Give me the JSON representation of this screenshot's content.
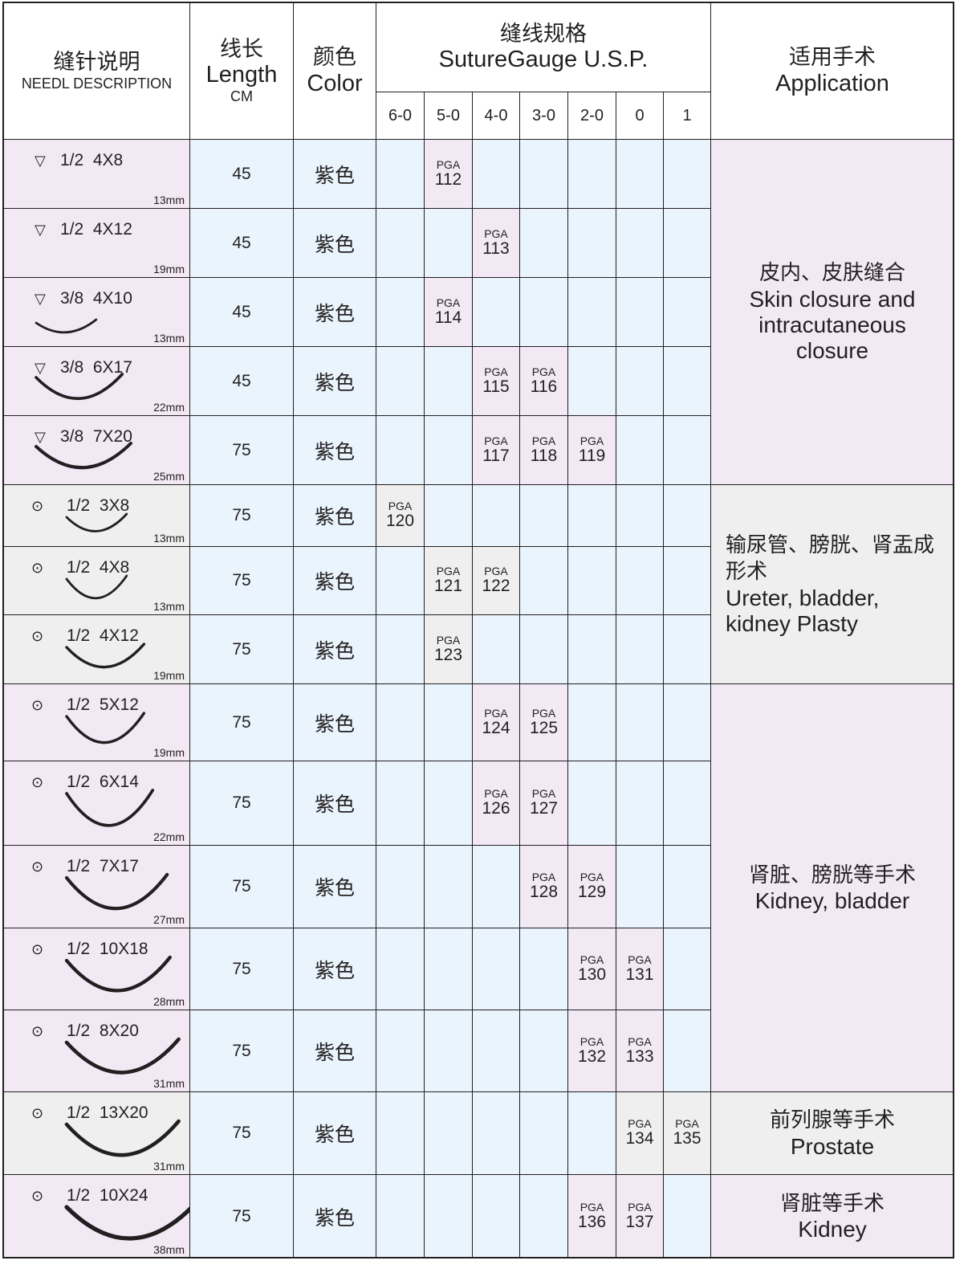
{
  "header": {
    "desc_cn": "缝针说明",
    "desc_en": "NEEDL DESCRIPTION",
    "length_cn": "线长",
    "length_en": "Length",
    "length_unit": "CM",
    "color_cn": "颜色",
    "color_en": "Color",
    "gauge_cn": "缝线规格",
    "gauge_en": "SutureGauge U.S.P.",
    "gauges": [
      "6-0",
      "5-0",
      "4-0",
      "3-0",
      "2-0",
      "0",
      "1"
    ],
    "app_cn": "适用手术",
    "app_en": "Application"
  },
  "colors": {
    "purple": "#f2e9f5",
    "blue": "#e9f4fd",
    "gray": "#efefef",
    "line": "#231f20"
  },
  "rows": [
    {
      "icon": "triangle",
      "curve": "1/2",
      "size": "4X8",
      "mm": "13mm",
      "length": "45",
      "color": "紫色",
      "tint": "purple",
      "codes": {
        "5-0": "112"
      }
    },
    {
      "icon": "triangle",
      "curve": "1/2",
      "size": "4X12",
      "mm": "19mm",
      "length": "45",
      "color": "紫色",
      "tint": "purple",
      "codes": {
        "4-0": "113"
      }
    },
    {
      "icon": "triangle",
      "curve": "3/8",
      "size": "4X10",
      "mm": "13mm",
      "length": "45",
      "color": "紫色",
      "tint": "purple",
      "codes": {
        "5-0": "114"
      }
    },
    {
      "icon": "triangle",
      "curve": "3/8",
      "size": "6X17",
      "mm": "22mm",
      "length": "45",
      "color": "紫色",
      "tint": "purple",
      "codes": {
        "4-0": "115",
        "3-0": "116"
      }
    },
    {
      "icon": "triangle",
      "curve": "3/8",
      "size": "7X20",
      "mm": "25mm",
      "length": "75",
      "color": "紫色",
      "tint": "purple",
      "codes": {
        "4-0": "117",
        "3-0": "118",
        "2-0": "119"
      }
    },
    {
      "icon": "circle-dot",
      "curve": "1/2",
      "size": "3X8",
      "mm": "13mm",
      "length": "75",
      "color": "紫色",
      "tint": "gray",
      "codes": {
        "6-0": "120"
      }
    },
    {
      "icon": "circle-dot",
      "curve": "1/2",
      "size": "4X8",
      "mm": "13mm",
      "length": "75",
      "color": "紫色",
      "tint": "gray",
      "codes": {
        "5-0": "121",
        "4-0": "122"
      }
    },
    {
      "icon": "circle-dot",
      "curve": "1/2",
      "size": "4X12",
      "mm": "19mm",
      "length": "75",
      "color": "紫色",
      "tint": "gray",
      "codes": {
        "5-0": "123"
      }
    },
    {
      "icon": "circle-dot",
      "curve": "1/2",
      "size": "5X12",
      "mm": "19mm",
      "length": "75",
      "color": "紫色",
      "tint": "purple",
      "codes": {
        "4-0": "124",
        "3-0": "125"
      }
    },
    {
      "icon": "circle-dot",
      "curve": "1/2",
      "size": "6X14",
      "mm": "22mm",
      "length": "75",
      "color": "紫色",
      "tint": "purple",
      "codes": {
        "4-0": "126",
        "3-0": "127"
      }
    },
    {
      "icon": "circle-dot",
      "curve": "1/2",
      "size": "7X17",
      "mm": "27mm",
      "length": "75",
      "color": "紫色",
      "tint": "purple",
      "codes": {
        "3-0": "128",
        "2-0": "129"
      }
    },
    {
      "icon": "circle-dot",
      "curve": "1/2",
      "size": "10X18",
      "mm": "28mm",
      "length": "75",
      "color": "紫色",
      "tint": "purple",
      "codes": {
        "2-0": "130",
        "0": "131"
      }
    },
    {
      "icon": "circle-dot",
      "curve": "1/2",
      "size": "8X20",
      "mm": "31mm",
      "length": "75",
      "color": "紫色",
      "tint": "purple",
      "codes": {
        "2-0": "132",
        "0": "133"
      }
    },
    {
      "icon": "circle-dot",
      "curve": "1/2",
      "size": "13X20",
      "mm": "31mm",
      "length": "75",
      "color": "紫色",
      "tint": "gray",
      "codes": {
        "0": "134",
        "1": "135"
      }
    },
    {
      "icon": "circle-dot",
      "curve": "1/2",
      "size": "10X24",
      "mm": "38mm",
      "length": "75",
      "color": "紫色",
      "tint": "purple",
      "codes": {
        "2-0": "136",
        "0": "137"
      }
    }
  ],
  "code_prefix": "PGA",
  "applications": [
    {
      "rows": [
        0,
        4
      ],
      "tint": "purple",
      "cn": "皮内、皮肤缝合",
      "en": "Skin closure and intracutaneous closure"
    },
    {
      "rows": [
        5,
        7
      ],
      "tint": "gray",
      "cn": "输尿管、膀胱、肾盂成形术",
      "en": "Ureter, bladder, kidney Plasty"
    },
    {
      "rows": [
        8,
        12
      ],
      "tint": "purple",
      "cn": "肾脏、膀胱等手术",
      "en": "Kidney, bladder"
    },
    {
      "rows": [
        13,
        13
      ],
      "tint": "gray",
      "cn": "前列腺等手术",
      "en": "Prostate"
    },
    {
      "rows": [
        14,
        14
      ],
      "tint": "purple",
      "cn": "肾脏等手术",
      "en": "Kidney"
    }
  ]
}
